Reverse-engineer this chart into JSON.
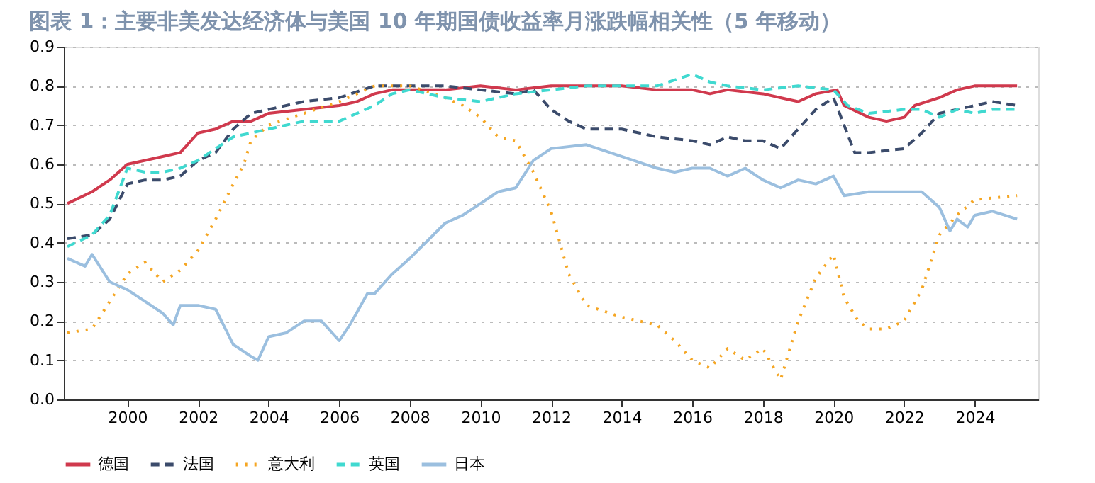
{
  "chart_data": {
    "type": "line",
    "title": "图表 1：主要非美发达经济体与美国 10 年期国债收益率月涨跌幅相关性（5 年移动）",
    "xlim": [
      1998.2,
      2025.8
    ],
    "xticks": [
      2000,
      2002,
      2004,
      2006,
      2008,
      2010,
      2012,
      2014,
      2016,
      2018,
      2020,
      2022,
      2024
    ],
    "ylim": [
      0,
      0.9
    ],
    "yticks": [
      {
        "value": 0,
        "label": "0.0"
      },
      0.1,
      0.2,
      0.3,
      0.4,
      0.5,
      0.6,
      0.7,
      0.8,
      0.9
    ],
    "grid": "y",
    "legend": "bottom",
    "series": [
      {
        "name": "德国",
        "color": "#d0394d",
        "line_style": "solid",
        "x": [
          1998.3,
          1999,
          1999.5,
          2000,
          2000.5,
          2001,
          2001.5,
          2002,
          2002.5,
          2003,
          2003.5,
          2004,
          2005,
          2006,
          2006.5,
          2007,
          2007.5,
          2008,
          2009,
          2010,
          2011,
          2012,
          2013,
          2014,
          2015,
          2016,
          2016.5,
          2017,
          2018,
          2018.5,
          2019,
          2019.5,
          2020.1,
          2020.3,
          2021,
          2021.5,
          2022,
          2022.3,
          2023,
          2023.5,
          2024,
          2024.5,
          2025.2
        ],
        "values": [
          0.5,
          0.53,
          0.56,
          0.6,
          0.61,
          0.62,
          0.63,
          0.68,
          0.69,
          0.71,
          0.71,
          0.73,
          0.74,
          0.75,
          0.76,
          0.78,
          0.79,
          0.79,
          0.79,
          0.8,
          0.79,
          0.8,
          0.8,
          0.8,
          0.79,
          0.79,
          0.78,
          0.79,
          0.78,
          0.77,
          0.76,
          0.78,
          0.79,
          0.75,
          0.72,
          0.71,
          0.72,
          0.75,
          0.77,
          0.79,
          0.8,
          0.8,
          0.8
        ]
      },
      {
        "name": "法国",
        "color": "#3b4b6b",
        "line_style": "dashed",
        "x": [
          1998.3,
          1999,
          1999.5,
          2000,
          2000.5,
          2001,
          2001.5,
          2002,
          2002.5,
          2003,
          2003.5,
          2004,
          2005,
          2006,
          2007,
          2008,
          2009,
          2010,
          2011,
          2011.5,
          2012,
          2012.5,
          2013,
          2014,
          2015,
          2016,
          2016.5,
          2017,
          2017.5,
          2018,
          2018.5,
          2019,
          2019.5,
          2020,
          2020.3,
          2020.6,
          2021,
          2022,
          2022.5,
          2023,
          2024,
          2024.5,
          2025.2
        ],
        "values": [
          0.41,
          0.42,
          0.46,
          0.55,
          0.56,
          0.56,
          0.57,
          0.61,
          0.63,
          0.69,
          0.73,
          0.74,
          0.76,
          0.77,
          0.8,
          0.8,
          0.8,
          0.79,
          0.78,
          0.79,
          0.74,
          0.71,
          0.69,
          0.69,
          0.67,
          0.66,
          0.65,
          0.67,
          0.66,
          0.66,
          0.64,
          0.69,
          0.74,
          0.77,
          0.7,
          0.63,
          0.63,
          0.64,
          0.68,
          0.73,
          0.75,
          0.76,
          0.75
        ]
      },
      {
        "name": "意大利",
        "color": "#f5a623",
        "line_style": "dotted",
        "x": [
          1998.3,
          1999,
          1999.5,
          2000,
          2000.5,
          2001,
          2001.5,
          2002,
          2002.5,
          2003,
          2003.3,
          2003.5,
          2004,
          2005,
          2006,
          2007,
          2008,
          2009,
          2009.5,
          2010,
          2010.5,
          2011,
          2011.5,
          2012,
          2012.5,
          2013,
          2014,
          2015,
          2015.5,
          2016,
          2016.5,
          2017,
          2017.5,
          2018,
          2018.5,
          2019,
          2019.5,
          2020,
          2020.3,
          2020.7,
          2021,
          2021.5,
          2022,
          2022.5,
          2023,
          2023.5,
          2024,
          2025.2
        ],
        "values": [
          0.17,
          0.18,
          0.25,
          0.32,
          0.35,
          0.3,
          0.33,
          0.38,
          0.46,
          0.55,
          0.6,
          0.66,
          0.7,
          0.73,
          0.76,
          0.8,
          0.8,
          0.77,
          0.75,
          0.72,
          0.67,
          0.66,
          0.58,
          0.48,
          0.32,
          0.24,
          0.21,
          0.19,
          0.15,
          0.1,
          0.08,
          0.13,
          0.1,
          0.13,
          0.05,
          0.2,
          0.31,
          0.37,
          0.26,
          0.2,
          0.18,
          0.18,
          0.2,
          0.28,
          0.42,
          0.47,
          0.51,
          0.52
        ]
      },
      {
        "name": "英国",
        "color": "#40d9d0",
        "line_style": "dashed",
        "x": [
          1998.3,
          1999,
          1999.5,
          2000,
          2000.5,
          2001,
          2001.5,
          2002,
          2002.5,
          2003,
          2004,
          2005,
          2006,
          2006.5,
          2007,
          2007.5,
          2008,
          2009,
          2010,
          2011,
          2012,
          2013,
          2014,
          2015,
          2016,
          2016.5,
          2017,
          2018,
          2019,
          2020,
          2020.4,
          2021,
          2022,
          2022.5,
          2023,
          2023.5,
          2024,
          2024.5,
          2025.2
        ],
        "values": [
          0.39,
          0.42,
          0.47,
          0.59,
          0.58,
          0.58,
          0.59,
          0.61,
          0.64,
          0.67,
          0.69,
          0.71,
          0.71,
          0.73,
          0.75,
          0.78,
          0.79,
          0.77,
          0.76,
          0.78,
          0.79,
          0.8,
          0.8,
          0.8,
          0.83,
          0.81,
          0.8,
          0.79,
          0.8,
          0.79,
          0.75,
          0.73,
          0.74,
          0.74,
          0.72,
          0.74,
          0.73,
          0.74,
          0.74
        ]
      },
      {
        "name": "日本",
        "color": "#9bbfdf",
        "line_style": "solid",
        "x": [
          1998.3,
          1998.8,
          1999,
          1999.5,
          2000,
          2000.5,
          2001,
          2001.3,
          2001.5,
          2002,
          2002.5,
          2003,
          2003.5,
          2003.7,
          2004,
          2004.5,
          2005,
          2005.5,
          2006,
          2006.3,
          2006.8,
          2007,
          2007.5,
          2008,
          2009,
          2009.5,
          2010,
          2010.5,
          2011,
          2011.5,
          2012,
          2013,
          2014,
          2015,
          2015.5,
          2016,
          2016.5,
          2017,
          2017.5,
          2018,
          2018.5,
          2019,
          2019.5,
          2020,
          2020.3,
          2021,
          2022,
          2022.5,
          2023,
          2023.3,
          2023.5,
          2023.8,
          2024,
          2024.5,
          2025.2
        ],
        "values": [
          0.36,
          0.34,
          0.37,
          0.3,
          0.28,
          0.25,
          0.22,
          0.19,
          0.24,
          0.24,
          0.23,
          0.14,
          0.11,
          0.1,
          0.16,
          0.17,
          0.2,
          0.2,
          0.15,
          0.19,
          0.27,
          0.27,
          0.32,
          0.36,
          0.45,
          0.47,
          0.5,
          0.53,
          0.54,
          0.61,
          0.64,
          0.65,
          0.62,
          0.59,
          0.58,
          0.59,
          0.59,
          0.57,
          0.59,
          0.56,
          0.54,
          0.56,
          0.55,
          0.57,
          0.52,
          0.53,
          0.53,
          0.53,
          0.49,
          0.43,
          0.46,
          0.44,
          0.47,
          0.48,
          0.46
        ]
      }
    ]
  }
}
